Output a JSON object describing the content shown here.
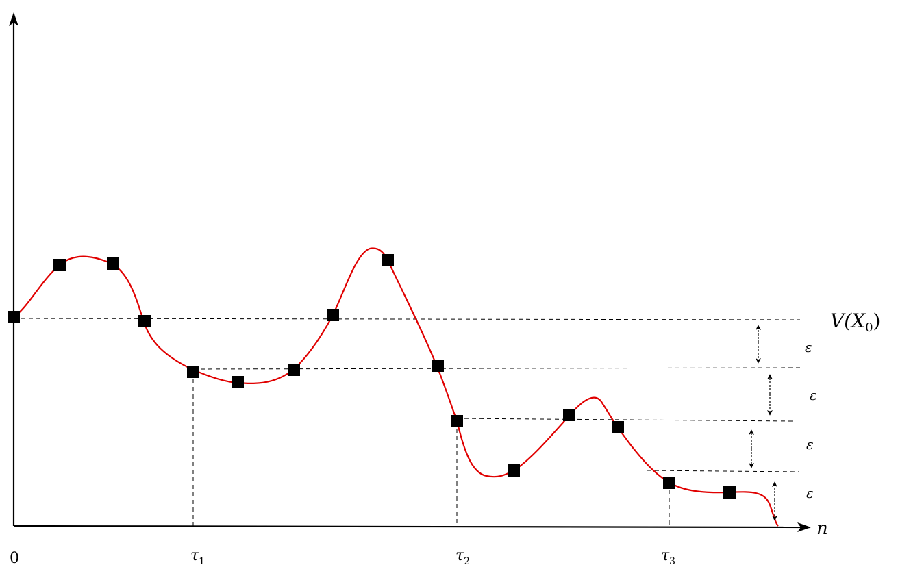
{
  "diagram": {
    "labels": {
      "origin": "0",
      "x_axis": "n",
      "level_label": "V(X",
      "level_sub": "0",
      "level_close": ")",
      "epsilon": "ε",
      "tau_symbol": "τ",
      "tau_subs": [
        "1",
        "2",
        "3"
      ]
    },
    "colors": {
      "curve": "#e00000",
      "markers": "#000000",
      "axes": "#000000",
      "guides": "#000000"
    }
  }
}
